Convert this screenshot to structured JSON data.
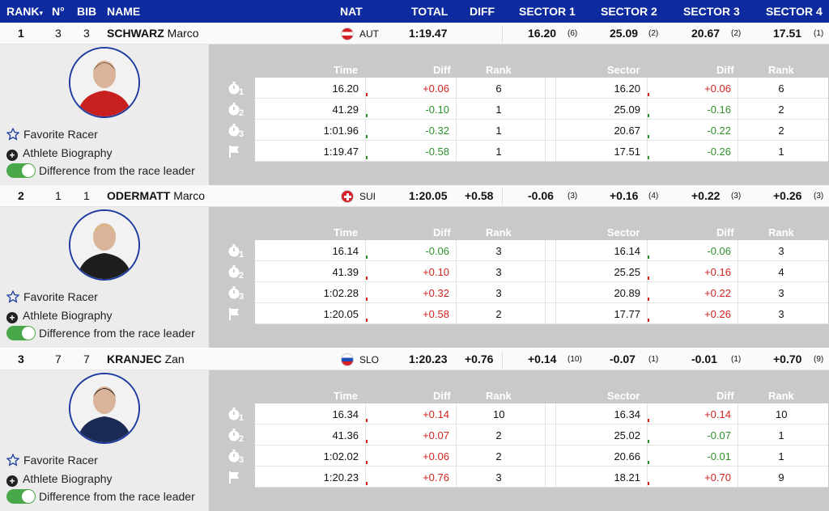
{
  "header": {
    "rank": "RANK",
    "rank_sort": "▾",
    "no": "N°",
    "bib": "BIB",
    "name": "NAME",
    "nat": "NAT",
    "total": "TOTAL",
    "diff": "DIFF",
    "sector1": "SECTOR 1",
    "sector2": "SECTOR 2",
    "sector3": "SECTOR 3",
    "sector4": "SECTOR 4"
  },
  "detail_headers": {
    "time": "Time",
    "diff": "Diff",
    "rank": "Rank",
    "sector": "Sector",
    "sdiff": "Diff",
    "srank": "Rank"
  },
  "links": {
    "favorite": "Favorite Racer",
    "bio": "Athlete Biography",
    "difference": "Difference from the race leader"
  },
  "colors": {
    "header_bg": "#0d2a9e",
    "positive": "#d0231f",
    "negative": "#2f8f2c",
    "toggle_on": "#49a84a"
  },
  "athletes": [
    {
      "rank": "1",
      "no": "3",
      "bib": "3",
      "last": "SCHWARZ",
      "first": "Marco",
      "nat": "AUT",
      "flag": "aut",
      "total": "1:19.47",
      "diff": "",
      "s": [
        {
          "v": "16.20",
          "r": "(6)"
        },
        {
          "v": "25.09",
          "r": "(2)"
        },
        {
          "v": "20.67",
          "r": "(2)"
        },
        {
          "v": "17.51",
          "r": "(1)"
        }
      ],
      "rows": [
        {
          "time": "16.20",
          "diff": "+0.06",
          "rank": "6",
          "sector": "16.20",
          "sdiff": "+0.06",
          "srank": "6"
        },
        {
          "time": "41.29",
          "diff": "-0.10",
          "rank": "1",
          "sector": "25.09",
          "sdiff": "-0.16",
          "srank": "2"
        },
        {
          "time": "1:01.96",
          "diff": "-0.32",
          "rank": "1",
          "sector": "20.67",
          "sdiff": "-0.22",
          "srank": "2"
        },
        {
          "time": "1:19.47",
          "diff": "-0.58",
          "rank": "1",
          "sector": "17.51",
          "sdiff": "-0.26",
          "srank": "1"
        }
      ]
    },
    {
      "rank": "2",
      "no": "1",
      "bib": "1",
      "last": "ODERMATT",
      "first": "Marco",
      "nat": "SUI",
      "flag": "sui",
      "total": "1:20.05",
      "diff": "+0.58",
      "s": [
        {
          "v": "-0.06",
          "r": "(3)"
        },
        {
          "v": "+0.16",
          "r": "(4)"
        },
        {
          "v": "+0.22",
          "r": "(3)"
        },
        {
          "v": "+0.26",
          "r": "(3)"
        }
      ],
      "rows": [
        {
          "time": "16.14",
          "diff": "-0.06",
          "rank": "3",
          "sector": "16.14",
          "sdiff": "-0.06",
          "srank": "3"
        },
        {
          "time": "41.39",
          "diff": "+0.10",
          "rank": "3",
          "sector": "25.25",
          "sdiff": "+0.16",
          "srank": "4"
        },
        {
          "time": "1:02.28",
          "diff": "+0.32",
          "rank": "3",
          "sector": "20.89",
          "sdiff": "+0.22",
          "srank": "3"
        },
        {
          "time": "1:20.05",
          "diff": "+0.58",
          "rank": "2",
          "sector": "17.77",
          "sdiff": "+0.26",
          "srank": "3"
        }
      ]
    },
    {
      "rank": "3",
      "no": "7",
      "bib": "7",
      "last": "KRANJEC",
      "first": "Zan",
      "nat": "SLO",
      "flag": "slo",
      "total": "1:20.23",
      "diff": "+0.76",
      "s": [
        {
          "v": "+0.14",
          "r": "(10)"
        },
        {
          "v": "-0.07",
          "r": "(1)"
        },
        {
          "v": "-0.01",
          "r": "(1)"
        },
        {
          "v": "+0.70",
          "r": "(9)"
        }
      ],
      "rows": [
        {
          "time": "16.34",
          "diff": "+0.14",
          "rank": "10",
          "sector": "16.34",
          "sdiff": "+0.14",
          "srank": "10"
        },
        {
          "time": "41.36",
          "diff": "+0.07",
          "rank": "2",
          "sector": "25.02",
          "sdiff": "-0.07",
          "srank": "1"
        },
        {
          "time": "1:02.02",
          "diff": "+0.06",
          "rank": "2",
          "sector": "20.66",
          "sdiff": "-0.01",
          "srank": "1"
        },
        {
          "time": "1:20.23",
          "diff": "+0.76",
          "rank": "3",
          "sector": "18.21",
          "sdiff": "+0.70",
          "srank": "9"
        }
      ]
    }
  ],
  "split_icons": [
    "stopwatch-1-icon",
    "stopwatch-2-icon",
    "stopwatch-3-icon",
    "finish-flag-icon"
  ],
  "split_numbers": [
    "1",
    "2",
    "3"
  ]
}
